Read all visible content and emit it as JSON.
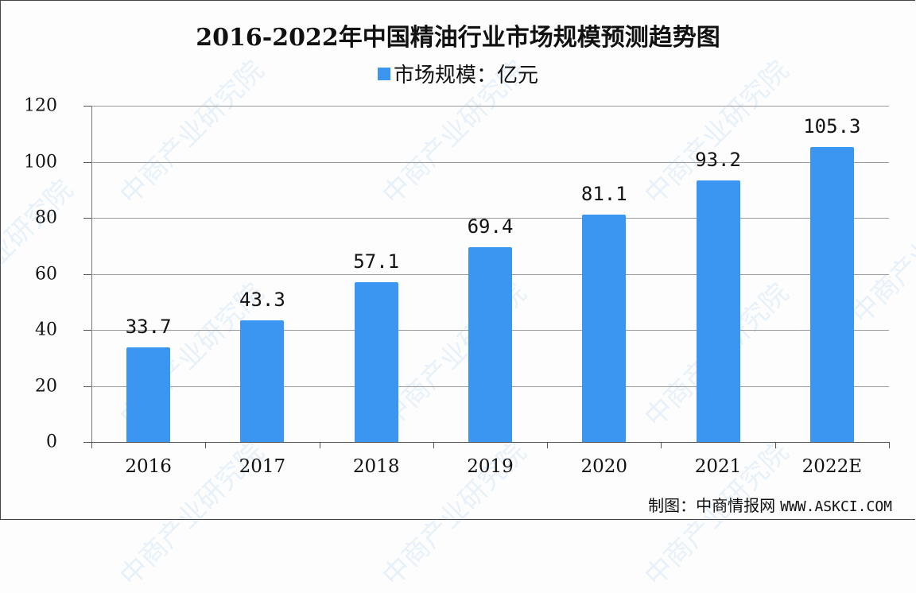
{
  "title": "2016-2022年中国精油行业市场规模预测趋势图",
  "legend": {
    "label": "市场规模：亿元",
    "color": "#3a96f0"
  },
  "source": {
    "label": "制图：中商情报网",
    "url": "WWW.ASKCI.COM"
  },
  "watermark": "中商产业研究院",
  "colors": {
    "bar": "#3a96f0",
    "grid": "#9a9a9a"
  },
  "chart_data": {
    "type": "bar",
    "title": "2016-2022年中国精油行业市场规模预测趋势图",
    "xlabel": "",
    "ylabel": "",
    "categories": [
      "2016",
      "2017",
      "2018",
      "2019",
      "2020",
      "2021",
      "2022E"
    ],
    "series": [
      {
        "name": "市场规模：亿元",
        "values": [
          33.7,
          43.3,
          57.1,
          69.4,
          81.1,
          93.2,
          105.3
        ]
      }
    ],
    "value_labels": [
      "33.7",
      "43.3",
      "57.1",
      "69.4",
      "81.1",
      "93.2",
      "105.3"
    ],
    "yticks": [
      "0",
      "20",
      "40",
      "60",
      "80",
      "100",
      "120"
    ],
    "ylim": [
      0,
      120
    ],
    "grid": true,
    "legend_position": "top"
  }
}
